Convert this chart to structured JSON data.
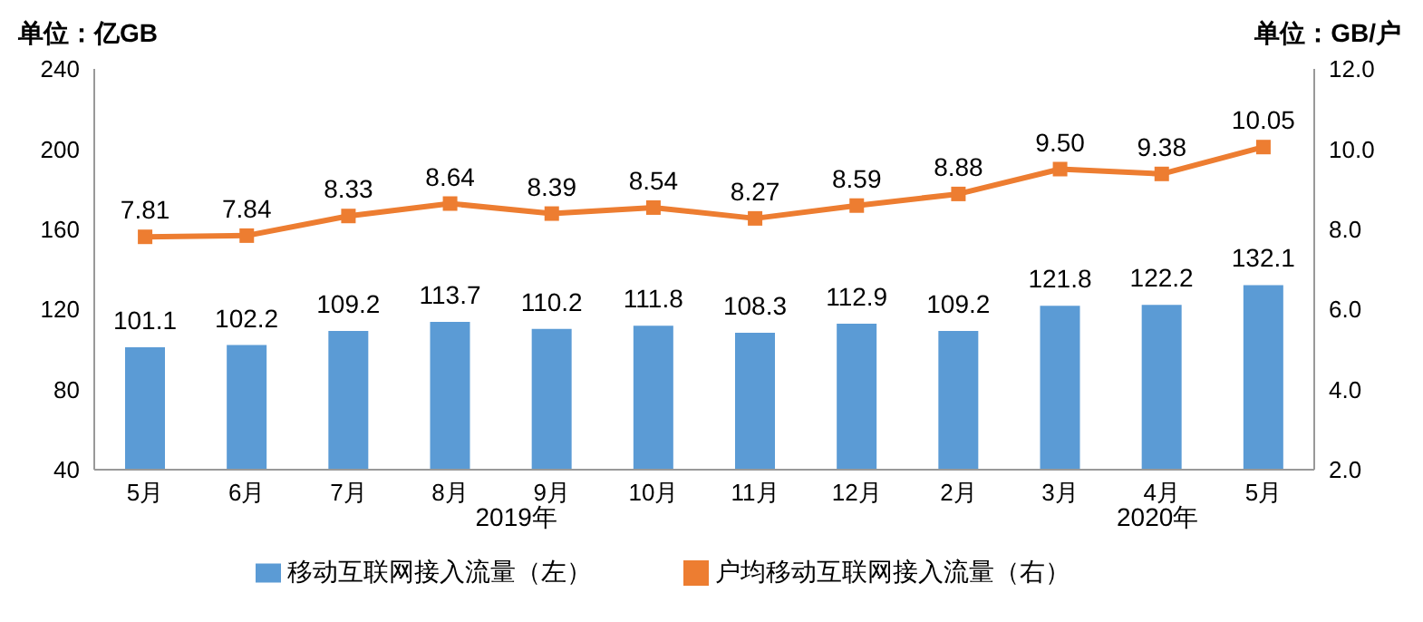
{
  "chart_data": {
    "type": "bar",
    "ylabel": "单位：亿GB",
    "y2label": "单位：GB/户",
    "categories": [
      "5月",
      "6月",
      "7月",
      "8月",
      "9月",
      "10月",
      "11月",
      "12月",
      "2月",
      "3月",
      "4月",
      "5月"
    ],
    "series": [
      {
        "name": "移动互联网接入流量（左）",
        "color": "#5b9bd5",
        "values": [
          101.1,
          102.2,
          109.2,
          113.7,
          110.2,
          111.8,
          108.3,
          112.9,
          109.2,
          121.8,
          122.2,
          132.1
        ],
        "value_labels": [
          "101.1",
          "102.2",
          "109.2",
          "113.7",
          "110.2",
          "111.8",
          "108.3",
          "112.9",
          "109.2",
          "121.8",
          "122.2",
          "132.1"
        ]
      },
      {
        "name": "户均移动互联网接入流量（右）",
        "type": "line",
        "axis": "y2",
        "color": "#ed7d31",
        "marker": "square",
        "values": [
          7.81,
          7.84,
          8.33,
          8.64,
          8.39,
          8.54,
          8.27,
          8.59,
          8.88,
          9.5,
          9.38,
          10.05
        ],
        "value_labels": [
          "7.81",
          "7.84",
          "8.33",
          "8.64",
          "8.39",
          "8.54",
          "8.27",
          "8.59",
          "8.88",
          "9.50",
          "9.38",
          "10.05"
        ]
      }
    ],
    "ylim": [
      40,
      240
    ],
    "yticks": [
      40,
      80,
      120,
      160,
      200,
      240
    ],
    "y2lim": [
      2,
      12
    ],
    "y2ticks": [
      {
        "value": 2,
        "label": "2.0"
      },
      {
        "value": 4,
        "label": "4.0"
      },
      {
        "value": 6,
        "label": "6.0"
      },
      {
        "value": 8,
        "label": "8.0"
      },
      {
        "value": 10,
        "label": "10.0"
      },
      {
        "value": 12,
        "label": "12.0"
      }
    ],
    "annotations": [
      "2019年",
      "2020年"
    ],
    "legend": "bottom"
  }
}
